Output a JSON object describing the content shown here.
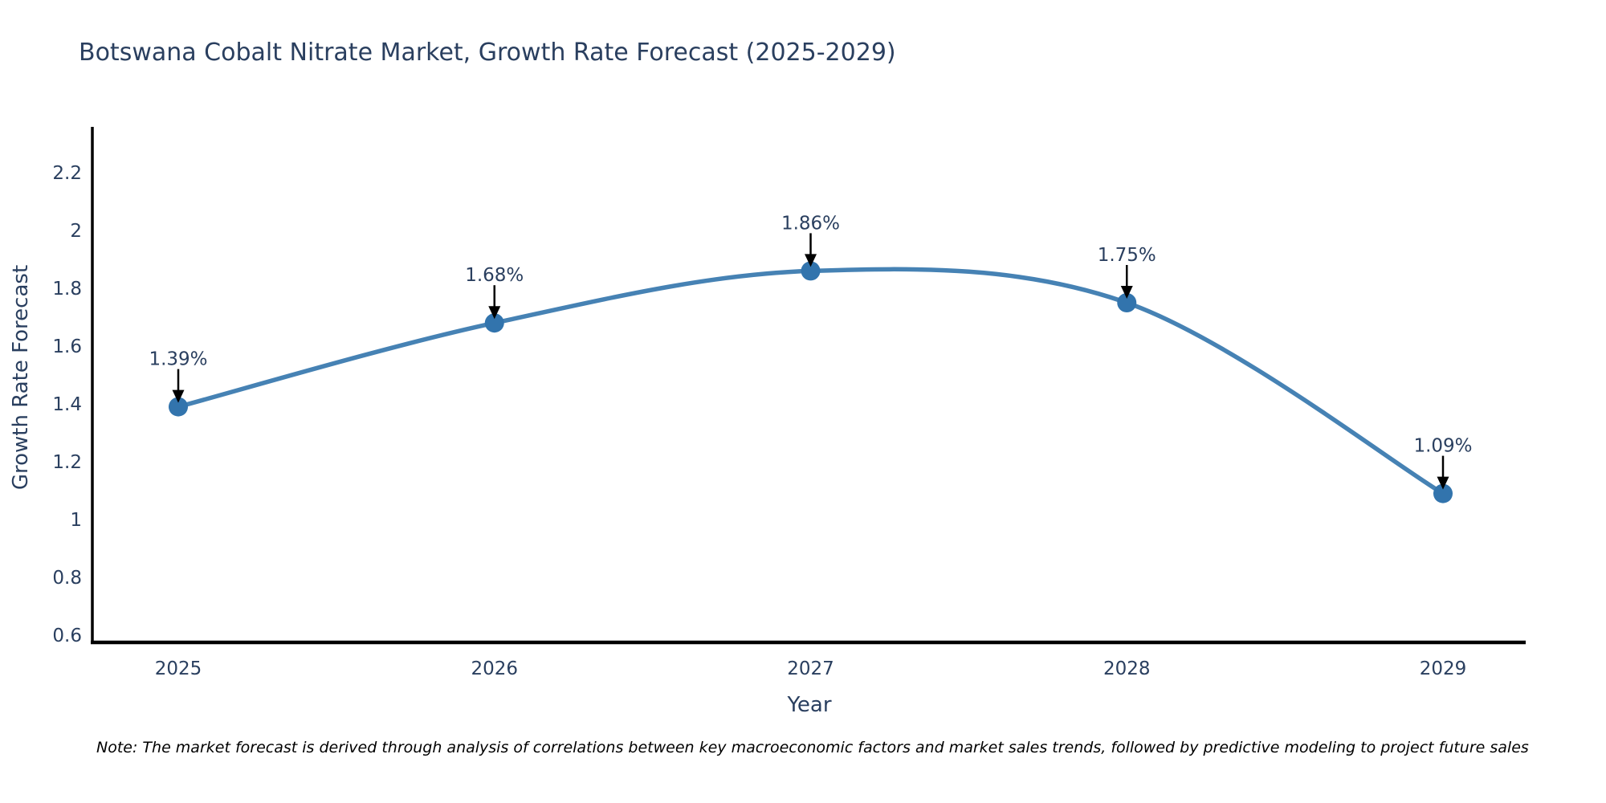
{
  "chart_data": {
    "type": "line",
    "title": "Botswana Cobalt Nitrate Market, Growth Rate Forecast (2025-2029)",
    "xlabel": "Year",
    "ylabel": "Growth Rate Forecast",
    "x": [
      2025,
      2026,
      2027,
      2028,
      2029
    ],
    "values": [
      1.39,
      1.68,
      1.86,
      1.75,
      1.09
    ],
    "point_labels": [
      "1.39%",
      "1.68%",
      "1.86%",
      "1.75%",
      "1.09%"
    ],
    "xtick_labels": [
      "2025",
      "2026",
      "2027",
      "2028",
      "2029"
    ],
    "yticks": [
      0.6,
      0.8,
      1.0,
      1.2,
      1.4,
      1.6,
      1.8,
      2.0,
      2.2
    ],
    "ytick_labels": [
      "0.6",
      "0.8",
      "1",
      "1.2",
      "1.4",
      "1.6",
      "1.8",
      "2",
      "2.2"
    ],
    "ylim": [
      0.575,
      2.36
    ],
    "grid": false,
    "legend": "none",
    "line_shape": "spline",
    "marker": "circle",
    "annotation_arrows": true,
    "note": "Note: The market forecast is derived through analysis of correlations between key macroeconomic factors and market sales trends, followed by predictive modeling to project future sales",
    "colors": {
      "line": "#4682b4",
      "marker": "#3274ad",
      "arrow": "#000000",
      "text": "#2a3f5f",
      "axis": "#000000",
      "note_text": "#000000",
      "background": "#ffffff"
    }
  }
}
